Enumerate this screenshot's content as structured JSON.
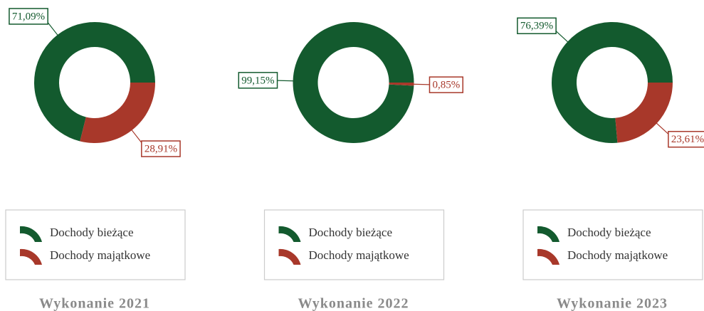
{
  "chart_data": [
    {
      "type": "pie",
      "donut": true,
      "title": "Wykonanie 2021",
      "categories": [
        "Dochody bieżące",
        "Dochody majątkowe"
      ],
      "values": [
        71.09,
        28.91
      ],
      "value_labels": [
        "71,09%",
        "28,91%"
      ],
      "colors": [
        "#135a2e",
        "#a8382a"
      ]
    },
    {
      "type": "pie",
      "donut": true,
      "title": "Wykonanie 2022",
      "categories": [
        "Dochody bieżące",
        "Dochody majątkowe"
      ],
      "values": [
        99.15,
        0.85
      ],
      "value_labels": [
        "99,15%",
        "0,85%"
      ],
      "colors": [
        "#135a2e",
        "#a8382a"
      ]
    },
    {
      "type": "pie",
      "donut": true,
      "title": "Wykonanie 2023",
      "categories": [
        "Dochody bieżące",
        "Dochody majątkowe"
      ],
      "values": [
        76.39,
        23.61
      ],
      "value_labels": [
        "76,39%",
        "23,61%"
      ],
      "colors": [
        "#135a2e",
        "#a8382a"
      ]
    }
  ]
}
